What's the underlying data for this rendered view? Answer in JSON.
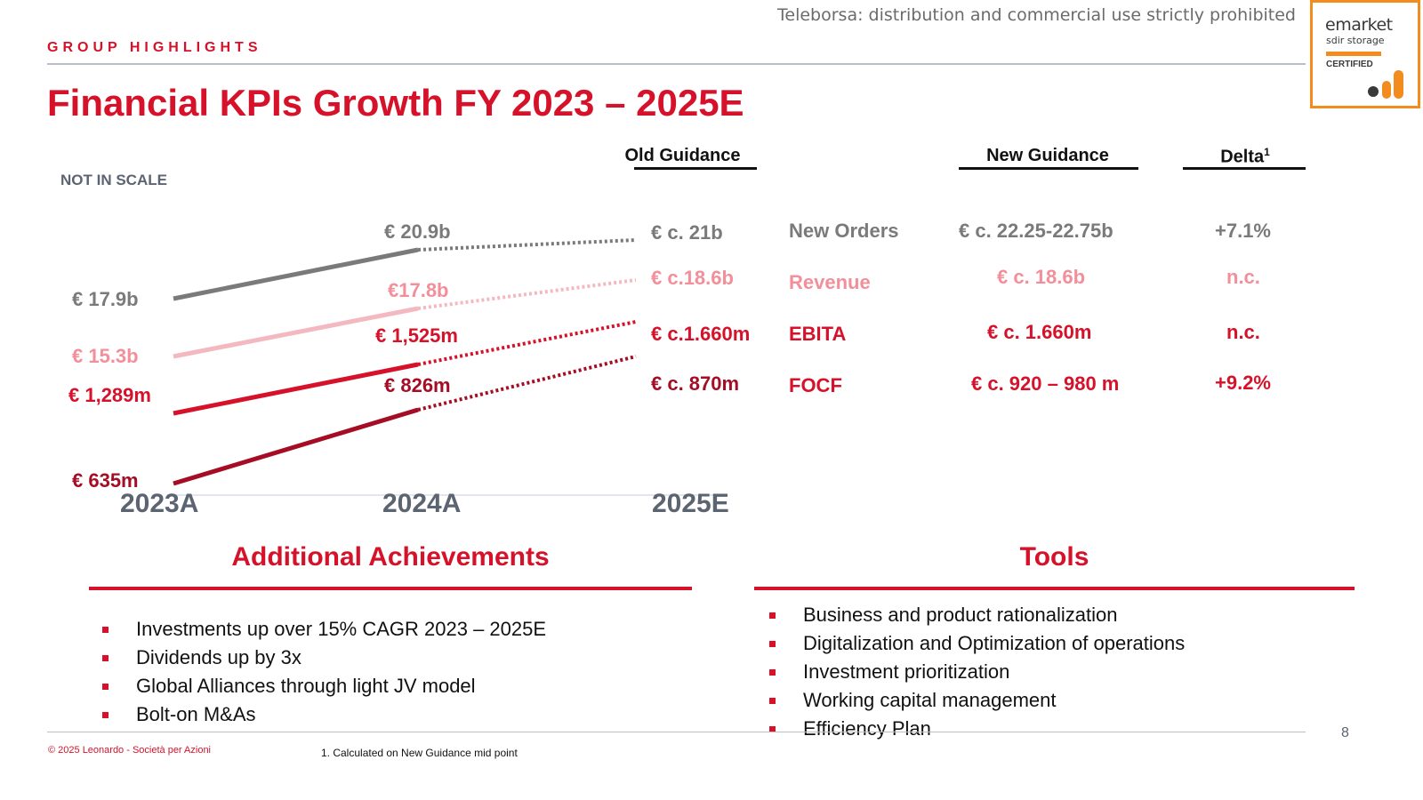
{
  "watermark": "Teleborsa: distribution and commercial use strictly prohibited",
  "badge": {
    "line1": "emarket",
    "line2": "sdir storage",
    "line3": "CERTIFIED"
  },
  "section_label": "GROUP HIGHLIGHTS",
  "title": "Financial KPIs Growth FY 2023 – 2025E",
  "not_in_scale": "NOT IN SCALE",
  "columns": {
    "old_guidance": "Old Guidance",
    "new_guidance": "New Guidance",
    "delta": "Delta",
    "delta_sup": "1"
  },
  "colors": {
    "gray": "#7a7a7a",
    "pink": "#f4b8c0",
    "red": "#d6112a",
    "dark": "#a50d24"
  },
  "chart_data": {
    "type": "line",
    "categories": [
      "2023A",
      "2024A",
      "2025E"
    ],
    "series": [
      {
        "name": "New Orders",
        "labels": [
          "€ 17.9b",
          "€ 20.9b",
          "€ c. 21b"
        ],
        "new_guidance": "€ c. 22.25-22.75b",
        "delta": "+7.1%"
      },
      {
        "name": "Revenue",
        "labels": [
          "€ 15.3b",
          "€17.8b",
          "€ c.18.6b"
        ],
        "new_guidance": "€ c. 18.6b",
        "delta": "n.c."
      },
      {
        "name": "EBITA",
        "labels": [
          "€ 1,289m",
          "€ 1,525m",
          "€ c.1.660m"
        ],
        "new_guidance": "€ c. 1.660m",
        "delta": "n.c."
      },
      {
        "name": "FOCF",
        "labels": [
          "€ 635m",
          "€ 826m",
          "€ c. 870m"
        ],
        "new_guidance": "€ c. 920 – 980 m",
        "delta": "+9.2%"
      }
    ]
  },
  "achievements": {
    "title": "Additional Achievements",
    "items": [
      "Investments up over 15% CAGR 2023 – 2025E",
      "Dividends up by 3x",
      "Global Alliances through light JV model",
      "Bolt-on M&As"
    ]
  },
  "tools": {
    "title": "Tools",
    "items": [
      "Business and product rationalization",
      "Digitalization and Optimization of operations",
      "Investment prioritization",
      "Working capital management",
      "Efficiency Plan"
    ]
  },
  "copyright": "© 2025 Leonardo - Società per Azioni",
  "footnote": "1. Calculated on New Guidance mid point",
  "page_number": "8"
}
